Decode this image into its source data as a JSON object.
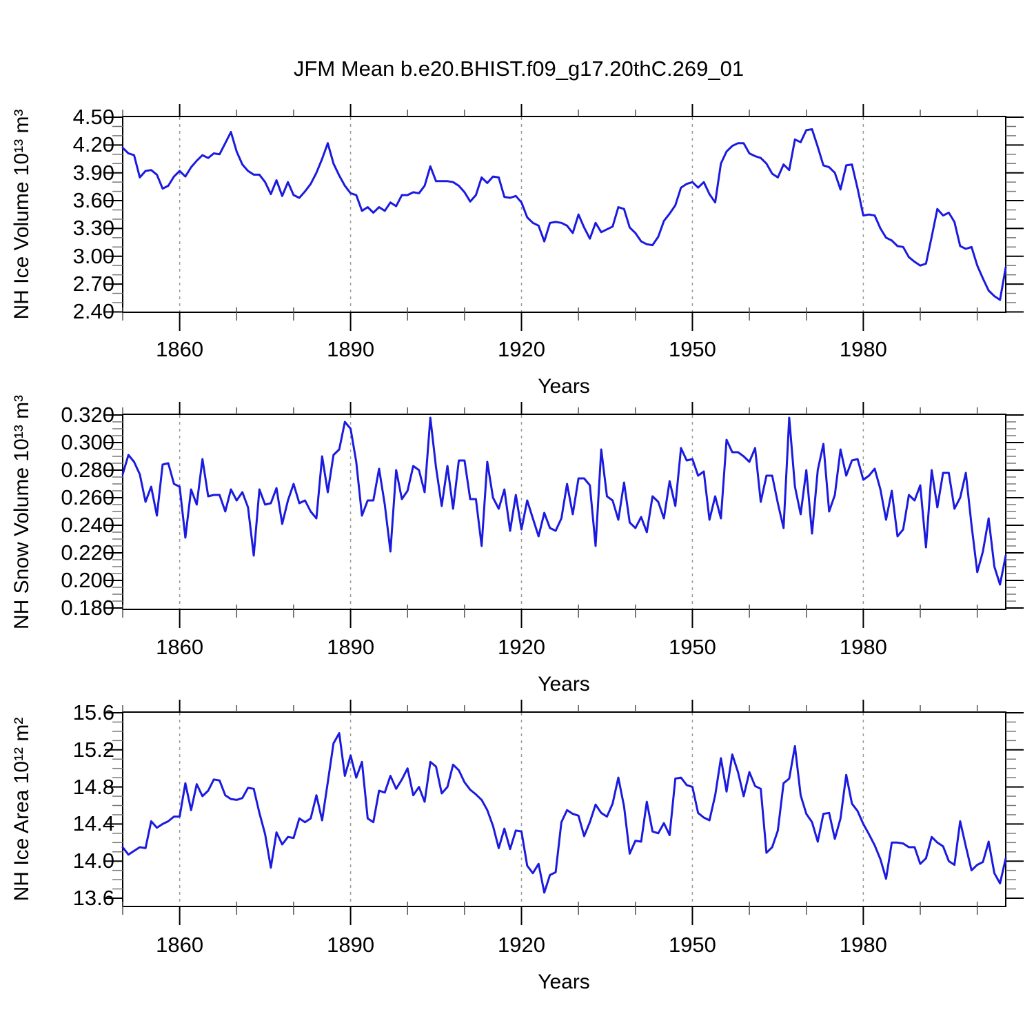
{
  "title": "JFM Mean b.e20.BHIST.f09_g17.20thC.269_01",
  "colors": {
    "line": "#1a1ae0",
    "frame": "#000000",
    "grid": "#999999",
    "minor_tick": "#555555"
  },
  "chart_data": [
    {
      "id": "nh-ice-volume",
      "type": "line",
      "ylabel": "NH Ice Volume 10¹³ m³",
      "xlabel": "Years",
      "x_start": 1850,
      "x_end": 2005,
      "x_major_ticks": [
        1860,
        1890,
        1920,
        1950,
        1980
      ],
      "x_tick_labels": [
        "1860",
        "1890",
        "1920",
        "1950",
        "1980"
      ],
      "x_minor_step": 10,
      "ylim": [
        2.4,
        4.5
      ],
      "y_major_step": 0.3,
      "y_minor_step": 0.1,
      "y_tick_values": [
        4.5,
        4.2,
        3.9,
        3.6,
        3.3,
        3.0,
        2.7,
        2.4
      ],
      "y_tick_labels": [
        "4.50",
        "4.20",
        "3.90",
        "3.60",
        "3.30",
        "3.00",
        "2.70",
        "2.40"
      ],
      "grid": "dashed-vertical",
      "legend": "none",
      "values": [
        4.17,
        4.11,
        4.09,
        3.85,
        3.92,
        3.93,
        3.88,
        3.73,
        3.76,
        3.86,
        3.92,
        3.86,
        3.96,
        4.03,
        4.09,
        4.06,
        4.11,
        4.1,
        4.22,
        4.34,
        4.13,
        3.99,
        3.92,
        3.88,
        3.88,
        3.8,
        3.67,
        3.82,
        3.65,
        3.8,
        3.66,
        3.63,
        3.7,
        3.78,
        3.9,
        4.05,
        4.22,
        4.0,
        3.87,
        3.76,
        3.68,
        3.66,
        3.49,
        3.53,
        3.47,
        3.53,
        3.49,
        3.58,
        3.54,
        3.66,
        3.66,
        3.69,
        3.68,
        3.76,
        3.97,
        3.81,
        3.81,
        3.81,
        3.8,
        3.76,
        3.69,
        3.59,
        3.66,
        3.85,
        3.79,
        3.86,
        3.85,
        3.64,
        3.63,
        3.65,
        3.58,
        3.42,
        3.36,
        3.33,
        3.16,
        3.36,
        3.37,
        3.36,
        3.33,
        3.25,
        3.45,
        3.31,
        3.19,
        3.36,
        3.26,
        3.29,
        3.32,
        3.53,
        3.51,
        3.31,
        3.25,
        3.16,
        3.13,
        3.12,
        3.21,
        3.38,
        3.46,
        3.55,
        3.74,
        3.78,
        3.8,
        3.74,
        3.8,
        3.67,
        3.58,
        4.0,
        4.13,
        4.19,
        4.22,
        4.22,
        4.11,
        4.08,
        4.06,
        4.0,
        3.89,
        3.85,
        3.99,
        3.93,
        4.26,
        4.23,
        4.36,
        4.37,
        4.18,
        3.98,
        3.96,
        3.9,
        3.72,
        3.98,
        3.99,
        3.73,
        3.44,
        3.45,
        3.44,
        3.3,
        3.2,
        3.17,
        3.11,
        3.1,
        2.99,
        2.94,
        2.9,
        2.92,
        3.21,
        3.51,
        3.44,
        3.47,
        3.37,
        3.11,
        3.08,
        3.1,
        2.9,
        2.76,
        2.63,
        2.57,
        2.53,
        2.88
      ]
    },
    {
      "id": "nh-snow-volume",
      "type": "line",
      "ylabel": "NH Snow Volume 10¹³ m³",
      "xlabel": "Years",
      "x_start": 1850,
      "x_end": 2005,
      "x_major_ticks": [
        1860,
        1890,
        1920,
        1950,
        1980
      ],
      "x_tick_labels": [
        "1860",
        "1890",
        "1920",
        "1950",
        "1980"
      ],
      "x_minor_step": 10,
      "ylim": [
        0.18,
        0.32
      ],
      "y_major_step": 0.02,
      "y_minor_step": 0.005,
      "y_tick_values": [
        0.32,
        0.3,
        0.28,
        0.26,
        0.24,
        0.22,
        0.2,
        0.18
      ],
      "y_tick_labels": [
        "0.320",
        "0.300",
        "0.280",
        "0.260",
        "0.240",
        "0.220",
        "0.200",
        "0.180"
      ],
      "grid": "dashed-vertical",
      "legend": "none",
      "values": [
        0.277,
        0.291,
        0.286,
        0.277,
        0.257,
        0.268,
        0.247,
        0.284,
        0.285,
        0.27,
        0.268,
        0.231,
        0.266,
        0.255,
        0.288,
        0.261,
        0.262,
        0.262,
        0.25,
        0.266,
        0.258,
        0.264,
        0.253,
        0.218,
        0.266,
        0.255,
        0.256,
        0.267,
        0.241,
        0.258,
        0.27,
        0.256,
        0.258,
        0.25,
        0.245,
        0.29,
        0.264,
        0.291,
        0.295,
        0.315,
        0.31,
        0.286,
        0.247,
        0.258,
        0.258,
        0.281,
        0.255,
        0.221,
        0.28,
        0.259,
        0.265,
        0.283,
        0.28,
        0.264,
        0.318,
        0.282,
        0.254,
        0.283,
        0.252,
        0.287,
        0.287,
        0.259,
        0.259,
        0.225,
        0.286,
        0.26,
        0.252,
        0.266,
        0.236,
        0.262,
        0.237,
        0.258,
        0.245,
        0.232,
        0.249,
        0.238,
        0.236,
        0.245,
        0.27,
        0.248,
        0.274,
        0.274,
        0.269,
        0.225,
        0.295,
        0.261,
        0.258,
        0.244,
        0.271,
        0.242,
        0.238,
        0.246,
        0.235,
        0.261,
        0.257,
        0.245,
        0.272,
        0.254,
        0.296,
        0.287,
        0.288,
        0.276,
        0.279,
        0.244,
        0.261,
        0.245,
        0.302,
        0.293,
        0.293,
        0.29,
        0.286,
        0.296,
        0.257,
        0.276,
        0.276,
        0.256,
        0.238,
        0.318,
        0.268,
        0.248,
        0.28,
        0.234,
        0.28,
        0.299,
        0.25,
        0.262,
        0.295,
        0.276,
        0.287,
        0.288,
        0.273,
        0.276,
        0.281,
        0.266,
        0.244,
        0.265,
        0.232,
        0.237,
        0.262,
        0.258,
        0.269,
        0.224,
        0.28,
        0.253,
        0.278,
        0.278,
        0.252,
        0.26,
        0.278,
        0.24,
        0.206,
        0.221,
        0.245,
        0.21,
        0.197,
        0.218
      ]
    },
    {
      "id": "nh-ice-area",
      "type": "line",
      "ylabel": "NH Ice Area 10¹² m²",
      "xlabel": "Years",
      "x_start": 1850,
      "x_end": 2005,
      "x_major_ticks": [
        1860,
        1890,
        1920,
        1950,
        1980
      ],
      "x_tick_labels": [
        "1860",
        "1890",
        "1920",
        "1950",
        "1980"
      ],
      "x_minor_step": 10,
      "ylim": [
        13.6,
        15.6
      ],
      "y_major_step": 0.4,
      "y_minor_step": 0.1,
      "y_tick_values": [
        15.6,
        15.2,
        14.8,
        14.4,
        14.0,
        13.6
      ],
      "y_tick_labels": [
        "15.6",
        "15.2",
        "14.8",
        "14.4",
        "14.0",
        "13.6"
      ],
      "grid": "dashed-vertical",
      "legend": "none",
      "values": [
        14.15,
        14.07,
        14.11,
        14.15,
        14.14,
        14.43,
        14.36,
        14.4,
        14.43,
        14.48,
        14.48,
        14.84,
        14.55,
        14.83,
        14.7,
        14.76,
        14.88,
        14.87,
        14.71,
        14.67,
        14.66,
        14.68,
        14.79,
        14.78,
        14.52,
        14.29,
        13.93,
        14.31,
        14.18,
        14.26,
        14.25,
        14.46,
        14.42,
        14.46,
        14.71,
        14.44,
        14.85,
        15.27,
        15.38,
        14.92,
        15.14,
        14.9,
        15.07,
        14.46,
        14.42,
        14.76,
        14.74,
        14.92,
        14.78,
        14.88,
        15.0,
        14.71,
        14.8,
        14.64,
        15.07,
        15.02,
        14.73,
        14.8,
        15.04,
        14.98,
        14.85,
        14.77,
        14.72,
        14.66,
        14.55,
        14.38,
        14.14,
        14.35,
        14.13,
        14.33,
        14.32,
        13.95,
        13.87,
        13.97,
        13.66,
        13.85,
        13.88,
        14.42,
        14.55,
        14.51,
        14.49,
        14.27,
        14.42,
        14.61,
        14.52,
        14.48,
        14.62,
        14.9,
        14.59,
        14.08,
        14.22,
        14.21,
        14.64,
        14.32,
        14.3,
        14.41,
        14.28,
        14.89,
        14.9,
        14.82,
        14.8,
        14.52,
        14.47,
        14.44,
        14.71,
        15.11,
        14.75,
        15.15,
        14.96,
        14.7,
        14.96,
        14.81,
        14.78,
        14.09,
        14.15,
        14.33,
        14.84,
        14.89,
        15.24,
        14.71,
        14.51,
        14.42,
        14.21,
        14.51,
        14.52,
        14.24,
        14.46,
        14.93,
        14.62,
        14.54,
        14.4,
        14.29,
        14.17,
        14.02,
        13.81,
        14.2,
        14.2,
        14.19,
        14.15,
        14.15,
        13.97,
        14.03,
        14.26,
        14.2,
        14.16,
        14.0,
        13.96,
        14.43,
        14.16,
        13.9,
        13.96,
        13.99,
        14.21,
        13.87,
        13.76,
        14.03
      ]
    }
  ]
}
